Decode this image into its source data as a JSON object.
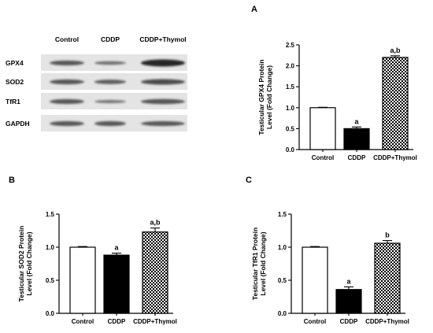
{
  "blot": {
    "columns": [
      "Control",
      "CDDP",
      "CDDP+Thymol"
    ],
    "rows": [
      {
        "label": "GPX4",
        "intensity": [
          1.0,
          0.5,
          2.2
        ]
      },
      {
        "label": "SOD2",
        "intensity": [
          1.0,
          0.88,
          1.23
        ]
      },
      {
        "label": "TfR1",
        "intensity": [
          1.0,
          0.36,
          1.06
        ]
      },
      {
        "label": "GAPDH",
        "intensity": [
          1.0,
          1.0,
          1.0
        ]
      }
    ]
  },
  "chart_data": [
    {
      "panel": "A",
      "type": "bar",
      "ylabel": "Testicular GPX4 Protein\nLevel (Fold Change)",
      "categories": [
        "Control",
        "CDDP",
        "CDDP+Thymol"
      ],
      "values": [
        1.0,
        0.5,
        2.2
      ],
      "errors": [
        0.01,
        0.04,
        0.04
      ],
      "annotations": [
        "",
        "a",
        "a,b"
      ],
      "ylim": [
        0,
        2.5
      ],
      "yticks": [
        "0.0",
        "0.5",
        "1.0",
        "1.5",
        "2.0",
        "2.5"
      ],
      "fills": [
        "white",
        "black",
        "checker"
      ]
    },
    {
      "panel": "B",
      "type": "bar",
      "ylabel": "Testicular SOD2 Protein\nLevel (Fold Change)",
      "categories": [
        "Control",
        "CDDP",
        "CDDP+Thymol"
      ],
      "values": [
        1.0,
        0.88,
        1.23
      ],
      "errors": [
        0.01,
        0.03,
        0.06
      ],
      "annotations": [
        "",
        "a",
        "a,b"
      ],
      "ylim": [
        0,
        1.5
      ],
      "yticks": [
        "0.0",
        "0.5",
        "1.0",
        "1.5"
      ],
      "fills": [
        "white",
        "black",
        "checker"
      ]
    },
    {
      "panel": "C",
      "type": "bar",
      "ylabel": "Testicular TfR1 Protein\nLevel (Fold Change)",
      "categories": [
        "Control",
        "CDDP",
        "CDDP+Thymol"
      ],
      "values": [
        1.0,
        0.36,
        1.06
      ],
      "errors": [
        0.01,
        0.04,
        0.04
      ],
      "annotations": [
        "",
        "a",
        "b"
      ],
      "ylim": [
        0,
        1.5
      ],
      "yticks": [
        "0.0",
        "0.5",
        "1.0",
        "1.5"
      ],
      "fills": [
        "white",
        "black",
        "checker"
      ]
    }
  ]
}
